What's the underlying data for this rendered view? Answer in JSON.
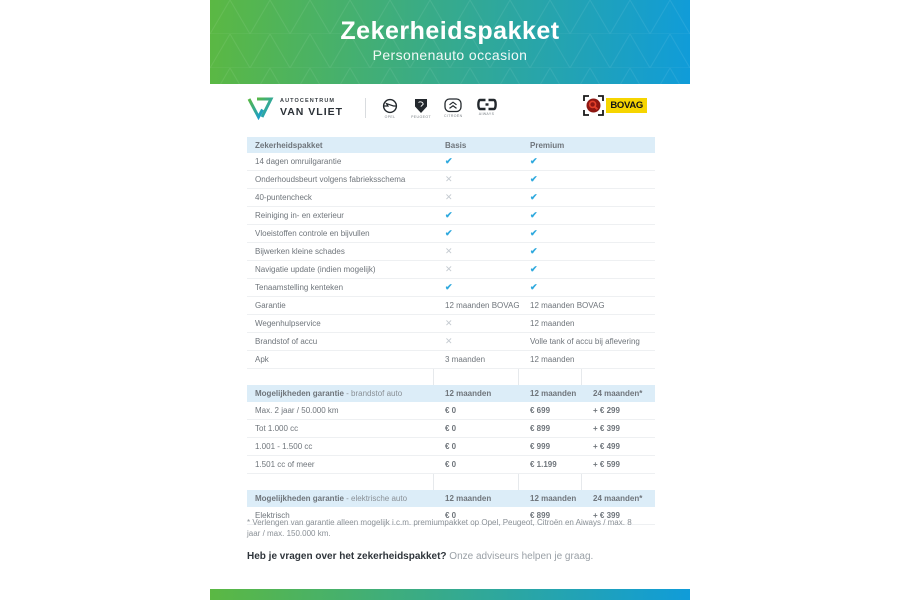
{
  "banner": {
    "title": "Zekerheidspakket",
    "subtitle": "Personenauto occasion"
  },
  "logos": {
    "dealer": {
      "line1": "AUTOCENTRUM",
      "line2": "VAN VLIET"
    },
    "brands": [
      {
        "name": "OPEL"
      },
      {
        "name": "PEUGEOT"
      },
      {
        "name": "CITROËN"
      },
      {
        "name": "AIWAYS"
      }
    ],
    "bovag": "BOVAG"
  },
  "icons": {
    "check": "✔",
    "cross": "✕"
  },
  "package_table": {
    "headers": [
      "Zekerheidspakket",
      "Basis",
      "Premium"
    ],
    "rows": [
      {
        "label": "14 dagen omruilgarantie",
        "basis": "check",
        "premium": "check"
      },
      {
        "label": "Onderhoudsbeurt volgens fabrieksschema",
        "basis": "cross",
        "premium": "check"
      },
      {
        "label": "40-puntencheck",
        "basis": "cross",
        "premium": "check"
      },
      {
        "label": "Reiniging in- en exterieur",
        "basis": "check",
        "premium": "check"
      },
      {
        "label": "Vloeistoffen controle en bijvullen",
        "basis": "check",
        "premium": "check"
      },
      {
        "label": "Bijwerken kleine schades",
        "basis": "cross",
        "premium": "check"
      },
      {
        "label": "Navigatie update (indien mogelijk)",
        "basis": "cross",
        "premium": "check"
      },
      {
        "label": "Tenaamstelling kenteken",
        "basis": "check",
        "premium": "check"
      },
      {
        "label": "Garantie",
        "basis": "12 maanden BOVAG",
        "premium": "12 maanden BOVAG"
      },
      {
        "label": "Wegenhulpservice",
        "basis": "cross",
        "premium": "12 maanden"
      },
      {
        "label": "Brandstof of accu",
        "basis": "cross",
        "premium": "Volle tank of accu bij aflevering"
      },
      {
        "label": "Apk",
        "basis": "3 maanden",
        "premium": "12 maanden"
      }
    ]
  },
  "fuel_table": {
    "title": "Mogelijkheden garantie",
    "title_suffix": " - brandstof auto",
    "columns": [
      "12 maanden",
      "12 maanden",
      "24 maanden*"
    ],
    "rows": [
      {
        "label": "Max. 2 jaar / 50.000 km",
        "values": [
          "€ 0",
          "€ 699",
          "+ € 299"
        ]
      },
      {
        "label": "Tot 1.000 cc",
        "values": [
          "€ 0",
          "€ 899",
          "+ € 399"
        ]
      },
      {
        "label": "1.001 - 1.500 cc",
        "values": [
          "€ 0",
          "€ 999",
          "+ € 499"
        ]
      },
      {
        "label": "1.501 cc of meer",
        "values": [
          "€ 0",
          "€ 1.199",
          "+ € 599"
        ]
      }
    ]
  },
  "electric_table": {
    "title": "Mogelijkheden garantie",
    "title_suffix": " - elektrische auto",
    "columns": [
      "12 maanden",
      "12 maanden",
      "24 maanden*"
    ],
    "rows": [
      {
        "label": "Elektrisch",
        "values": [
          "€ 0",
          "€ 899",
          "+ € 399"
        ]
      }
    ]
  },
  "footnote": "* Verlengen van garantie alleen mogelijk i.c.m. premiumpakket op Opel, Peugeot, Citroën en Aiways / max. 8 jaar / max. 150.000 km.",
  "cta": {
    "bold": "Heb je vragen over het zekerheidspakket?",
    "regular": " Onze adviseurs helpen je graag."
  },
  "colors": {
    "gradient_start": "#5bb843",
    "gradient_end": "#109cd9",
    "check": "#2fa9de",
    "cross": "#c4cad0",
    "table_header_bg": "#dcedf8"
  }
}
